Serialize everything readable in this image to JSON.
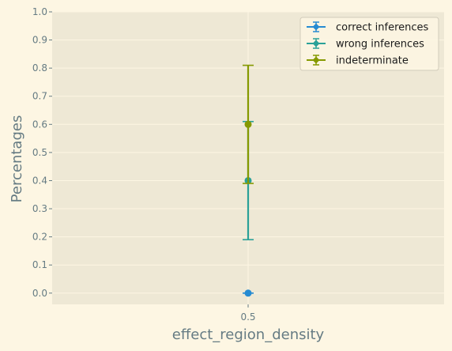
{
  "chart_data": {
    "type": "scatter",
    "title": "",
    "xlabel": "effect_region_density",
    "ylabel": "Percentages",
    "x": [
      0.5
    ],
    "x_tick_labels": [
      "0.5"
    ],
    "ylim": [
      -0.04,
      1.0
    ],
    "y_ticks": [
      "0.0",
      "0.1",
      "0.2",
      "0.3",
      "0.4",
      "0.5",
      "0.6",
      "0.7",
      "0.8",
      "0.9",
      "1.0"
    ],
    "grid": true,
    "legend_position": "top-right",
    "series": [
      {
        "name": "correct inferences",
        "color": "#268bd2",
        "values": [
          0.0
        ],
        "err_low": [
          0.0
        ],
        "err_high": [
          0.0
        ]
      },
      {
        "name": "wrong inferences",
        "color": "#2aa198",
        "values": [
          0.4
        ],
        "err_low": [
          0.19
        ],
        "err_high": [
          0.61
        ]
      },
      {
        "name": "indeterminate",
        "color": "#859900",
        "values": [
          0.6
        ],
        "err_low": [
          0.39
        ],
        "err_high": [
          0.81
        ]
      }
    ],
    "colors": {
      "page_background": "#fdf6e3",
      "plot_background": "#eee8d5",
      "grid": "#fdf6e3",
      "text": "#657b83"
    }
  }
}
